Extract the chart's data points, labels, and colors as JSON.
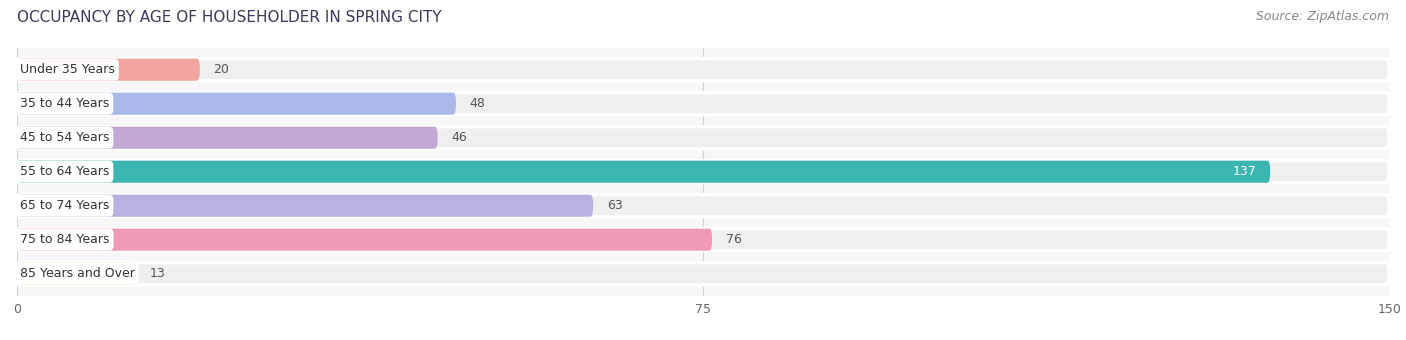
{
  "title": "OCCUPANCY BY AGE OF HOUSEHOLDER IN SPRING CITY",
  "source": "Source: ZipAtlas.com",
  "categories": [
    "Under 35 Years",
    "35 to 44 Years",
    "45 to 54 Years",
    "55 to 64 Years",
    "65 to 74 Years",
    "75 to 84 Years",
    "85 Years and Over"
  ],
  "values": [
    20,
    48,
    46,
    137,
    63,
    76,
    13
  ],
  "bar_colors": [
    "#f2a49e",
    "#a9b8e8",
    "#c4a8d4",
    "#3ab5b0",
    "#b8b0e0",
    "#f09ab8",
    "#f5d09a"
  ],
  "bar_bg_color": "#efefef",
  "bar_border_color": "#ffffff",
  "xlim": [
    0,
    150
  ],
  "xticks": [
    0,
    75,
    150
  ],
  "title_fontsize": 11,
  "source_fontsize": 9,
  "label_fontsize": 9,
  "value_fontsize": 9,
  "background_color": "#ffffff",
  "plot_bg_color": "#f7f7f7",
  "bar_height": 0.65,
  "bar_gap": 0.35
}
